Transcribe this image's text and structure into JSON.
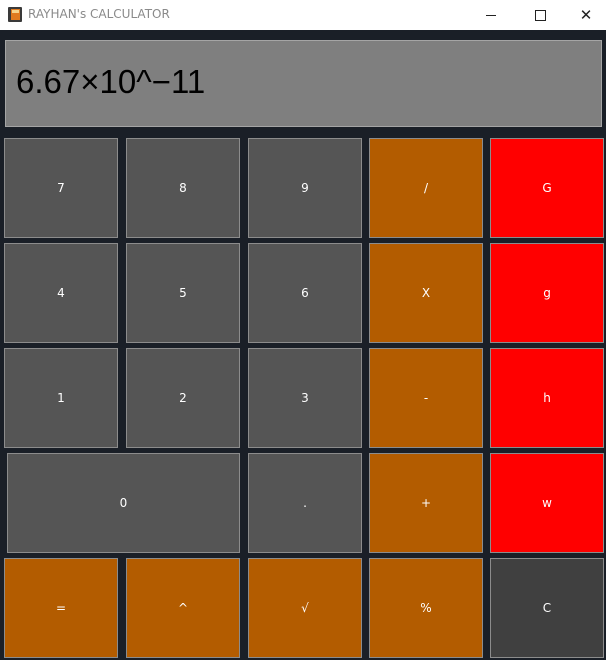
{
  "window": {
    "title": "RAYHAN's CALCULATOR",
    "controls": {
      "minimize": "",
      "maximize": "",
      "close": "✕"
    }
  },
  "display": {
    "value": "6.67×10^−11"
  },
  "keys": {
    "row1": [
      "7",
      "8",
      "9",
      "/",
      "G"
    ],
    "row2": [
      "4",
      "5",
      "6",
      "X",
      "g"
    ],
    "row3": [
      "1",
      "2",
      "3",
      "-",
      "h"
    ],
    "row4": [
      "0",
      ".",
      "+",
      "w"
    ],
    "row5": [
      "=",
      "^",
      "√",
      "%",
      "C"
    ]
  },
  "colors": {
    "number_key": "#555555",
    "operator_key": "#b35c00",
    "constant_key": "#ff0000",
    "clear_key": "#404040",
    "display_bg": "#7f7f7f",
    "window_bg": "#1a1f27"
  }
}
